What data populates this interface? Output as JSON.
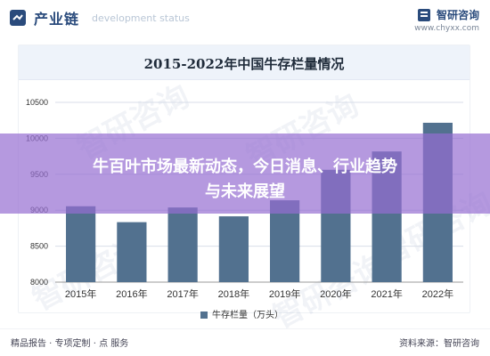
{
  "header": {
    "left_title": "产业链",
    "left_subtitle": "development status",
    "right_name": "智研咨询",
    "right_url": "www.chyxx.com"
  },
  "watermark_text": "智研咨询",
  "overlay": {
    "line1": "牛百叶市场最新动态，今日消息、行业趋势",
    "line2": "与未来展望"
  },
  "footer": {
    "left": "精品报告 · 专项定制 · 点 服务",
    "right": "资料来源：智研咨询"
  },
  "colors": {
    "bar": "#52718f",
    "grid": "#d8dee8",
    "axis_text": "#333333"
  },
  "chart_data": {
    "type": "bar",
    "title": "2015-2022年中国牛存栏量情况",
    "categories": [
      "2015年",
      "2016年",
      "2017年",
      "2018年",
      "2019年",
      "2020年",
      "2021年",
      "2022年"
    ],
    "series": [
      {
        "name": "牛存栏量（万头）",
        "values": [
          9055,
          8834,
          9038,
          8915,
          9138,
          9562,
          9817,
          10216
        ]
      }
    ],
    "ylim": [
      8000,
      10500
    ],
    "yticks": [
      8000,
      8500,
      9000,
      9500,
      10000,
      10500
    ],
    "grid": true,
    "legend": "bottom-center"
  }
}
